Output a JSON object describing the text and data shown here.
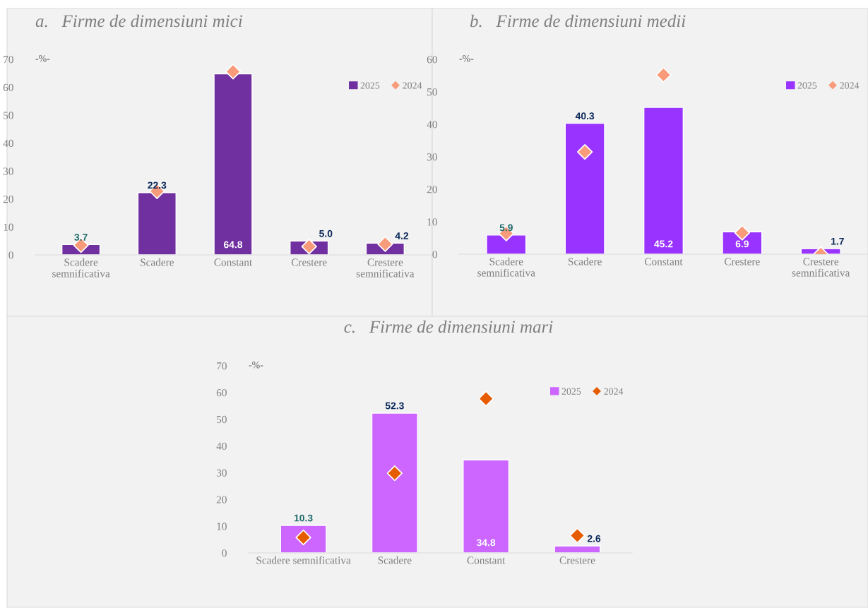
{
  "chart_data": [
    {
      "type": "bar",
      "title": "a.   Firme de dimensiuni mici",
      "categories": [
        "Scadere\nsemnificativa",
        "Scadere",
        "Constant",
        "Crestere",
        "Crestere\nsemnificativa"
      ],
      "ylim": [
        0,
        70
      ],
      "yticks": [
        0,
        10,
        20,
        30,
        40,
        50,
        60,
        70
      ],
      "annotations": [
        "-%-"
      ],
      "legend": "top right",
      "marker": "diamond",
      "grid": false,
      "series": [
        {
          "name": "2025",
          "color": "#7030a0",
          "values": [
            3.7,
            22.3,
            64.8,
            5.0,
            4.2
          ],
          "value_labels": [
            "3.7",
            "22.3",
            "64.8",
            "5.0",
            "4.2"
          ]
        },
        {
          "name": "2024",
          "type": "scatter",
          "color": "#f79b7a",
          "values": [
            3.5,
            22.8,
            65.6,
            3.0,
            3.9
          ]
        }
      ]
    },
    {
      "type": "bar",
      "title": "b.   Firme de dimensiuni medii",
      "categories": [
        "Scadere\nsemnificativa",
        "Scadere",
        "Constant",
        "Crestere",
        "Crestere\nsemnificativa"
      ],
      "ylim": [
        0,
        60
      ],
      "yticks": [
        0,
        10,
        20,
        30,
        40,
        50,
        60
      ],
      "annotations": [
        "-%-"
      ],
      "legend": "top right",
      "marker": "diamond",
      "grid": false,
      "series": [
        {
          "name": "2025",
          "color": "#9933ff",
          "values": [
            5.9,
            40.3,
            45.2,
            6.9,
            1.7
          ],
          "value_labels": [
            "5.9",
            "40.3",
            "45.2",
            "6.9",
            "1.7"
          ]
        },
        {
          "name": "2024",
          "type": "scatter",
          "color": "#f79b7a",
          "values": [
            6.4,
            31.5,
            55.2,
            6.6,
            0.0
          ]
        }
      ]
    },
    {
      "type": "bar",
      "title": "c.   Firme de dimensiuni mari",
      "categories": [
        "Scadere semnificativa",
        "Scadere",
        "Constant",
        "Crestere"
      ],
      "ylim": [
        0,
        70
      ],
      "yticks": [
        0,
        10,
        20,
        30,
        40,
        50,
        60,
        70
      ],
      "annotations": [
        "-%-"
      ],
      "legend": "top right",
      "marker": "diamond",
      "grid": false,
      "series": [
        {
          "name": "2025",
          "color": "#cc66ff",
          "values": [
            10.3,
            52.3,
            34.8,
            2.6
          ],
          "value_labels": [
            "10.3",
            "52.3",
            "34.8",
            "2.6"
          ]
        },
        {
          "name": "2024",
          "type": "scatter",
          "color": "#e65c00",
          "values": [
            5.8,
            29.8,
            57.7,
            6.5
          ]
        }
      ]
    }
  ]
}
